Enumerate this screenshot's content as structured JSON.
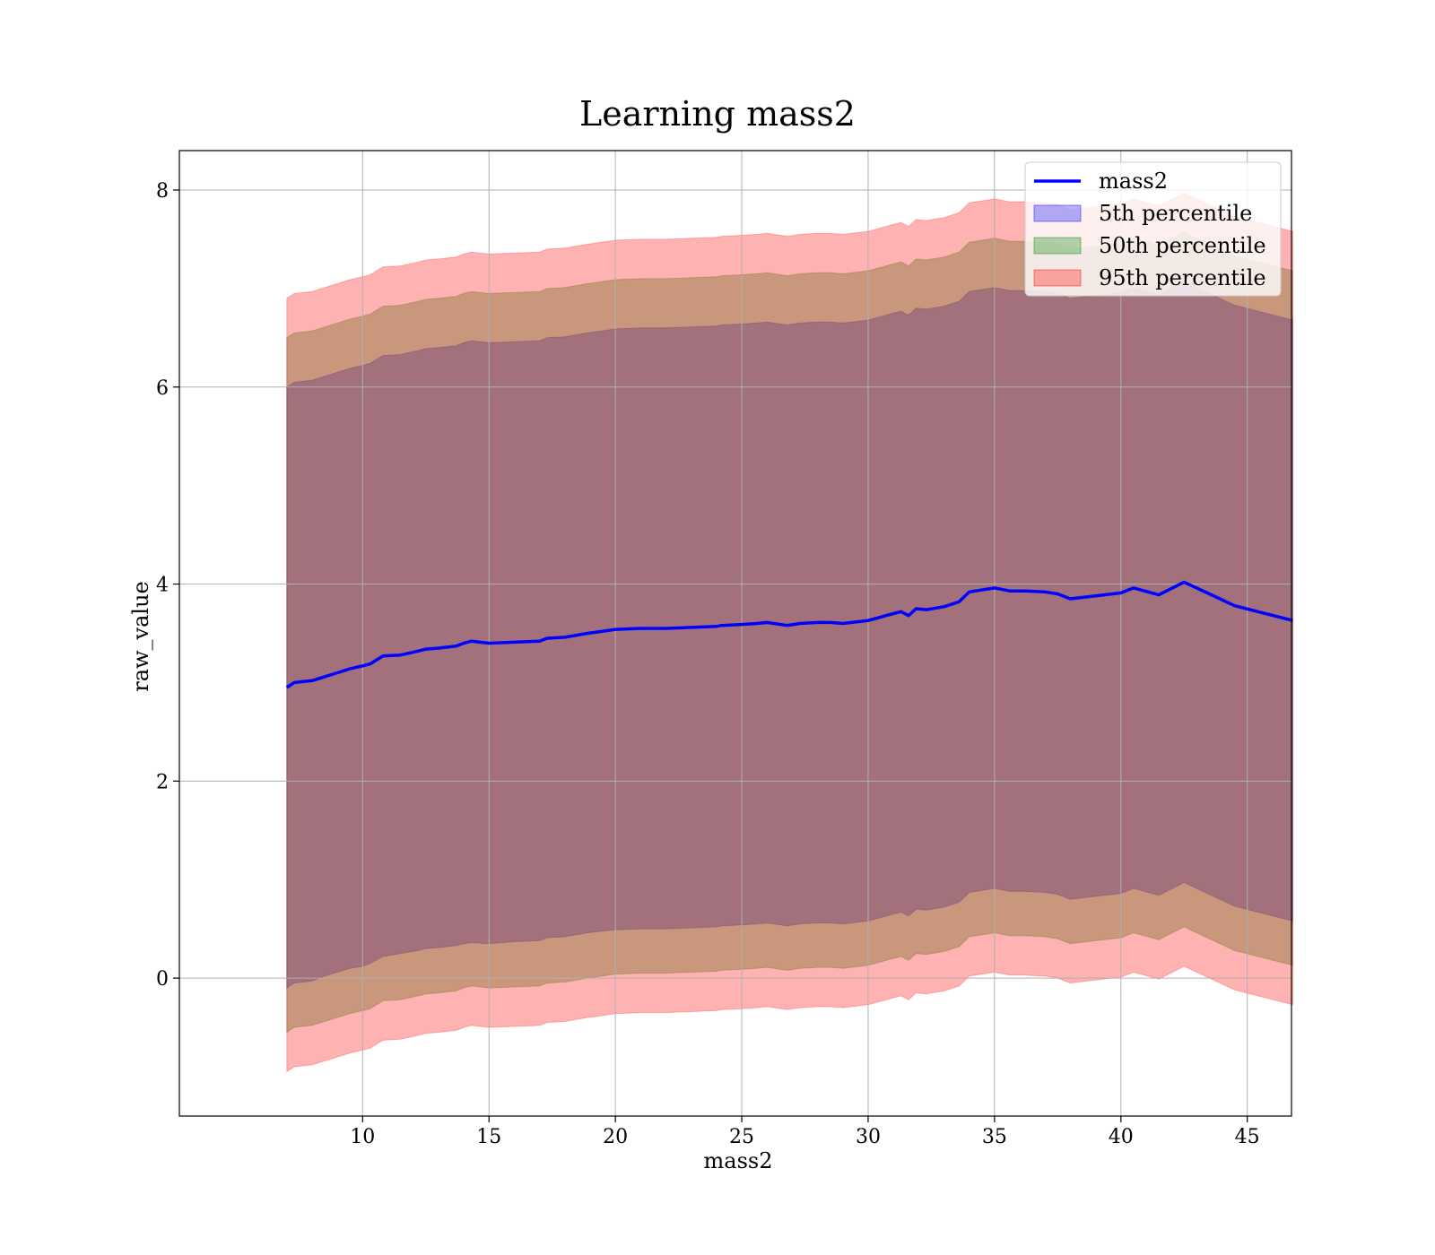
{
  "chart_data": {
    "type": "line",
    "title": "Learning mass2",
    "xlabel": "mass2",
    "ylabel": "raw_value",
    "xlim": [
      2.75,
      46.75
    ],
    "ylim": [
      -1.4,
      8.4
    ],
    "xticks": [
      10,
      15,
      20,
      25,
      30,
      35,
      40,
      45
    ],
    "yticks": [
      0,
      2,
      4,
      6,
      8
    ],
    "grid": true,
    "legend_position": "top-right",
    "x": [
      7.0,
      7.3,
      8.0,
      8.5,
      9.0,
      9.5,
      10.0,
      10.3,
      10.8,
      11.5,
      12.2,
      12.5,
      13.0,
      13.7,
      14.0,
      14.3,
      15.0,
      16.0,
      17.0,
      17.3,
      18.0,
      18.9,
      19.2,
      20.0,
      21.0,
      22.0,
      23.0,
      24.0,
      24.2,
      25.0,
      25.6,
      26.0,
      26.8,
      27.3,
      28.0,
      28.5,
      29.0,
      30.0,
      31.0,
      31.3,
      31.6,
      31.9,
      32.3,
      33.0,
      33.6,
      34.0,
      35.0,
      35.6,
      36.2,
      37.0,
      37.5,
      38.0,
      39.0,
      40.0,
      40.5,
      41.5,
      42.5,
      43.5,
      44.5,
      46.8
    ],
    "series": [
      {
        "name": "mass2",
        "kind": "line",
        "color": "#0000ff",
        "values": [
          2.95,
          3.0,
          3.02,
          3.06,
          3.1,
          3.14,
          3.17,
          3.19,
          3.27,
          3.28,
          3.32,
          3.34,
          3.35,
          3.37,
          3.4,
          3.42,
          3.4,
          3.41,
          3.42,
          3.45,
          3.46,
          3.5,
          3.51,
          3.54,
          3.55,
          3.55,
          3.56,
          3.57,
          3.58,
          3.59,
          3.6,
          3.61,
          3.58,
          3.6,
          3.61,
          3.61,
          3.6,
          3.63,
          3.7,
          3.72,
          3.68,
          3.75,
          3.74,
          3.77,
          3.82,
          3.92,
          3.96,
          3.93,
          3.93,
          3.92,
          3.9,
          3.85,
          3.88,
          3.91,
          3.96,
          3.89,
          4.02,
          3.9,
          3.78,
          3.63
        ]
      },
      {
        "name": "5th percentile",
        "kind": "band",
        "color": "#0000ff",
        "opacity": 0.3,
        "lower": [
          -0.1,
          -0.05,
          -0.03,
          0.02,
          0.06,
          0.1,
          0.12,
          0.15,
          0.22,
          0.25,
          0.28,
          0.3,
          0.31,
          0.33,
          0.35,
          0.36,
          0.35,
          0.37,
          0.38,
          0.41,
          0.42,
          0.46,
          0.47,
          0.49,
          0.5,
          0.5,
          0.51,
          0.52,
          0.53,
          0.54,
          0.55,
          0.56,
          0.53,
          0.55,
          0.56,
          0.56,
          0.55,
          0.58,
          0.65,
          0.67,
          0.63,
          0.7,
          0.69,
          0.72,
          0.77,
          0.87,
          0.91,
          0.88,
          0.88,
          0.87,
          0.85,
          0.8,
          0.83,
          0.86,
          0.91,
          0.84,
          0.97,
          0.85,
          0.73,
          0.58
        ],
        "upper": [
          6.0,
          6.05,
          6.07,
          6.11,
          6.15,
          6.19,
          6.22,
          6.24,
          6.32,
          6.33,
          6.37,
          6.39,
          6.4,
          6.42,
          6.45,
          6.47,
          6.45,
          6.46,
          6.47,
          6.5,
          6.51,
          6.55,
          6.56,
          6.59,
          6.6,
          6.6,
          6.61,
          6.62,
          6.63,
          6.64,
          6.65,
          6.66,
          6.63,
          6.65,
          6.66,
          6.66,
          6.65,
          6.68,
          6.75,
          6.77,
          6.73,
          6.8,
          6.79,
          6.82,
          6.87,
          6.97,
          7.01,
          6.98,
          6.98,
          6.97,
          6.95,
          6.9,
          6.93,
          6.96,
          7.01,
          6.94,
          7.07,
          6.95,
          6.83,
          6.68
        ]
      },
      {
        "name": "50th percentile",
        "kind": "band",
        "color": "#008000",
        "opacity": 0.3,
        "lower": [
          -0.55,
          -0.5,
          -0.48,
          -0.44,
          -0.4,
          -0.36,
          -0.33,
          -0.31,
          -0.23,
          -0.22,
          -0.18,
          -0.16,
          -0.15,
          -0.13,
          -0.1,
          -0.08,
          -0.1,
          -0.09,
          -0.08,
          -0.05,
          -0.04,
          0.0,
          0.01,
          0.04,
          0.05,
          0.05,
          0.06,
          0.07,
          0.08,
          0.09,
          0.1,
          0.11,
          0.08,
          0.1,
          0.11,
          0.11,
          0.1,
          0.13,
          0.2,
          0.22,
          0.18,
          0.25,
          0.24,
          0.27,
          0.32,
          0.42,
          0.46,
          0.43,
          0.43,
          0.42,
          0.4,
          0.35,
          0.38,
          0.41,
          0.46,
          0.39,
          0.52,
          0.4,
          0.28,
          0.13
        ],
        "upper": [
          6.5,
          6.55,
          6.57,
          6.61,
          6.65,
          6.69,
          6.72,
          6.74,
          6.82,
          6.83,
          6.87,
          6.89,
          6.9,
          6.92,
          6.95,
          6.97,
          6.95,
          6.96,
          6.97,
          7.0,
          7.01,
          7.05,
          7.06,
          7.09,
          7.1,
          7.1,
          7.11,
          7.12,
          7.13,
          7.14,
          7.15,
          7.16,
          7.13,
          7.15,
          7.16,
          7.16,
          7.15,
          7.18,
          7.25,
          7.27,
          7.23,
          7.3,
          7.29,
          7.32,
          7.37,
          7.47,
          7.51,
          7.48,
          7.48,
          7.47,
          7.45,
          7.4,
          7.43,
          7.46,
          7.51,
          7.44,
          7.57,
          7.45,
          7.33,
          7.18
        ]
      },
      {
        "name": "95th percentile",
        "kind": "band",
        "color": "#ff0000",
        "opacity": 0.3,
        "lower": [
          -0.95,
          -0.9,
          -0.88,
          -0.84,
          -0.8,
          -0.76,
          -0.73,
          -0.71,
          -0.63,
          -0.62,
          -0.58,
          -0.56,
          -0.55,
          -0.53,
          -0.5,
          -0.48,
          -0.5,
          -0.49,
          -0.48,
          -0.45,
          -0.44,
          -0.4,
          -0.39,
          -0.36,
          -0.35,
          -0.35,
          -0.34,
          -0.33,
          -0.32,
          -0.31,
          -0.3,
          -0.29,
          -0.32,
          -0.3,
          -0.29,
          -0.29,
          -0.3,
          -0.27,
          -0.2,
          -0.18,
          -0.22,
          -0.15,
          -0.16,
          -0.13,
          -0.08,
          0.02,
          0.06,
          0.03,
          0.03,
          0.02,
          0.0,
          -0.05,
          -0.02,
          0.01,
          0.06,
          -0.01,
          0.12,
          0.0,
          -0.12,
          -0.27
        ],
        "upper": [
          6.9,
          6.95,
          6.97,
          7.01,
          7.05,
          7.09,
          7.12,
          7.14,
          7.22,
          7.23,
          7.27,
          7.29,
          7.3,
          7.32,
          7.35,
          7.37,
          7.35,
          7.36,
          7.37,
          7.4,
          7.41,
          7.45,
          7.46,
          7.49,
          7.5,
          7.5,
          7.51,
          7.52,
          7.53,
          7.54,
          7.55,
          7.56,
          7.53,
          7.55,
          7.56,
          7.56,
          7.55,
          7.58,
          7.65,
          7.67,
          7.63,
          7.7,
          7.69,
          7.72,
          7.77,
          7.87,
          7.91,
          7.88,
          7.88,
          7.87,
          7.85,
          7.8,
          7.83,
          7.86,
          7.91,
          7.84,
          7.97,
          7.85,
          7.73,
          7.58
        ]
      }
    ]
  }
}
